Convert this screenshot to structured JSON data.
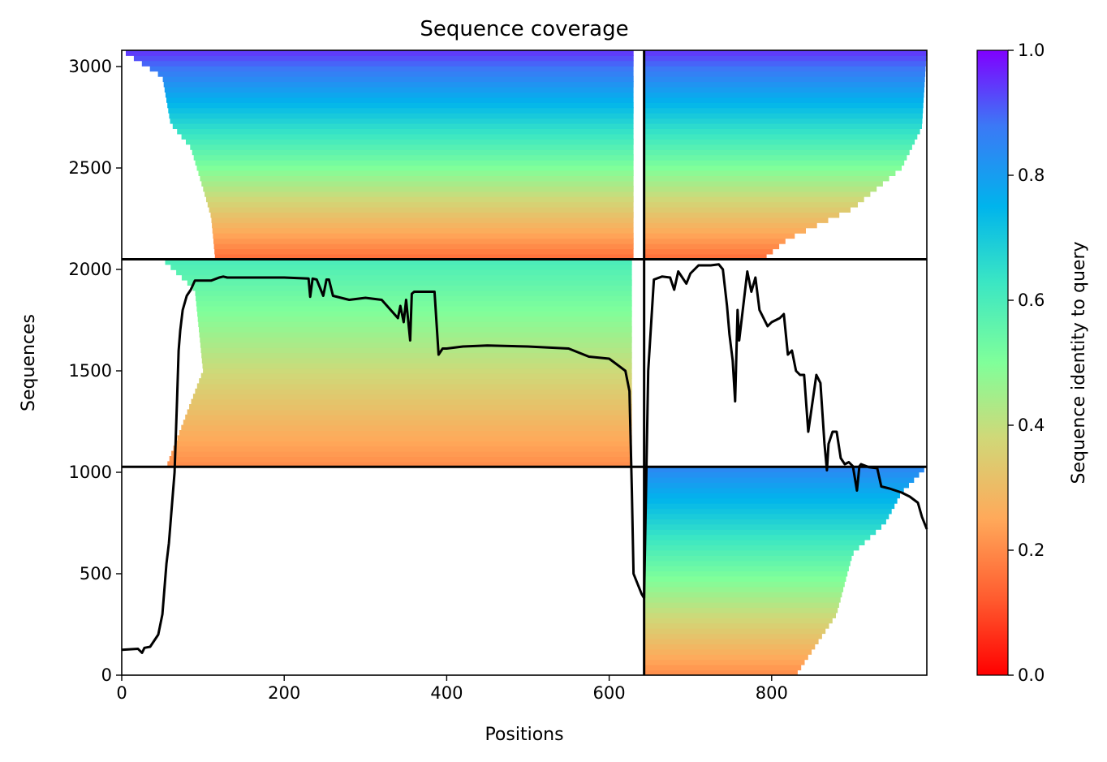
{
  "chart_data": {
    "type": "heatmap",
    "title": "Sequence coverage",
    "xlabel": "Positions",
    "ylabel": "Sequences",
    "colorbar_label": "Sequence identity to query",
    "colormap": "rainbow",
    "xlim": [
      0,
      991
    ],
    "ylim": [
      0,
      3080
    ],
    "x_ticks": [
      0,
      200,
      400,
      600,
      800
    ],
    "y_ticks": [
      0,
      500,
      1000,
      1500,
      2000,
      2500,
      3000
    ],
    "colorbar_ticks": [
      "0.0",
      "0.2",
      "0.4",
      "0.6",
      "0.8",
      "1.0"
    ],
    "colorbar_range": [
      0,
      1
    ],
    "block_boundaries": {
      "x": [
        643
      ],
      "y": [
        1027,
        2050
      ]
    },
    "blocks": [
      {
        "x": [
          0,
          643
        ],
        "y": [
          2050,
          3080
        ],
        "coverage_start": [
          [
            3080,
            0
          ],
          [
            2950,
            50
          ],
          [
            2720,
            60
          ],
          [
            2600,
            85
          ],
          [
            2400,
            100
          ],
          [
            2260,
            110
          ],
          [
            2050,
            115
          ]
        ],
        "coverage_end": 630,
        "identity_range": [
          0.15,
          0.95
        ]
      },
      {
        "x": [
          643,
          991
        ],
        "y": [
          2050,
          3080
        ],
        "coverage_start": [
          [
            3080,
            643
          ],
          [
            2050,
            643
          ]
        ],
        "coverage_end_profile": [
          [
            3080,
            991
          ],
          [
            2700,
            985
          ],
          [
            2500,
            960
          ],
          [
            2300,
            900
          ],
          [
            2150,
            820
          ],
          [
            2050,
            790
          ]
        ],
        "identity_range": [
          0.15,
          0.95
        ]
      },
      {
        "x": [
          0,
          643
        ],
        "y": [
          1027,
          2050
        ],
        "coverage_start": [
          [
            2050,
            50
          ],
          [
            1900,
            90
          ],
          [
            1500,
            100
          ],
          [
            1027,
            55
          ]
        ],
        "coverage_end": 628,
        "identity_range": [
          0.2,
          0.6
        ]
      },
      {
        "x": [
          643,
          991
        ],
        "y": [
          0,
          1027
        ],
        "coverage_end_profile": [
          [
            1027,
            991
          ],
          [
            900,
            960
          ],
          [
            750,
            940
          ],
          [
            600,
            900
          ],
          [
            300,
            880
          ],
          [
            0,
            830
          ]
        ],
        "identity_range": [
          0.2,
          0.85
        ]
      }
    ],
    "coverage_line": {
      "x": [
        0,
        20,
        25,
        28,
        35,
        45,
        50,
        55,
        58,
        62,
        65,
        68,
        70,
        72,
        75,
        80,
        85,
        90,
        95,
        100,
        110,
        120,
        125,
        130,
        150,
        200,
        230,
        232,
        235,
        240,
        248,
        252,
        255,
        260,
        280,
        300,
        320,
        340,
        343,
        347,
        350,
        355,
        357,
        360,
        385,
        390,
        395,
        400,
        420,
        450,
        500,
        550,
        575,
        600,
        620,
        625,
        628,
        630,
        635,
        640,
        643,
        648,
        655,
        665,
        675,
        680,
        685,
        695,
        700,
        710,
        725,
        735,
        740,
        745,
        748,
        752,
        755,
        758,
        760,
        770,
        775,
        780,
        785,
        795,
        800,
        810,
        815,
        820,
        825,
        830,
        835,
        840,
        845,
        855,
        860,
        865,
        868,
        870,
        875,
        880,
        885,
        890,
        895,
        900,
        905,
        908,
        910,
        920,
        930,
        935,
        945,
        960,
        970,
        980,
        985,
        991
      ],
      "y": [
        125,
        130,
        110,
        135,
        140,
        200,
        300,
        550,
        650,
        850,
        1000,
        1350,
        1600,
        1700,
        1800,
        1870,
        1900,
        1945,
        1945,
        1945,
        1945,
        1960,
        1965,
        1960,
        1960,
        1960,
        1955,
        1865,
        1955,
        1950,
        1870,
        1950,
        1950,
        1870,
        1850,
        1860,
        1850,
        1760,
        1820,
        1740,
        1850,
        1650,
        1880,
        1890,
        1890,
        1580,
        1610,
        1610,
        1620,
        1625,
        1620,
        1610,
        1570,
        1560,
        1500,
        1400,
        900,
        500,
        450,
        400,
        380,
        1500,
        1950,
        1965,
        1960,
        1900,
        1990,
        1930,
        1980,
        2020,
        2020,
        2025,
        2000,
        1820,
        1680,
        1550,
        1350,
        1800,
        1650,
        1990,
        1890,
        1960,
        1800,
        1720,
        1740,
        1760,
        1780,
        1580,
        1600,
        1500,
        1480,
        1480,
        1200,
        1480,
        1440,
        1140,
        1010,
        1140,
        1200,
        1200,
        1070,
        1040,
        1050,
        1030,
        910,
        1030,
        1040,
        1025,
        1020,
        930,
        920,
        900,
        880,
        850,
        780,
        720
      ]
    }
  }
}
